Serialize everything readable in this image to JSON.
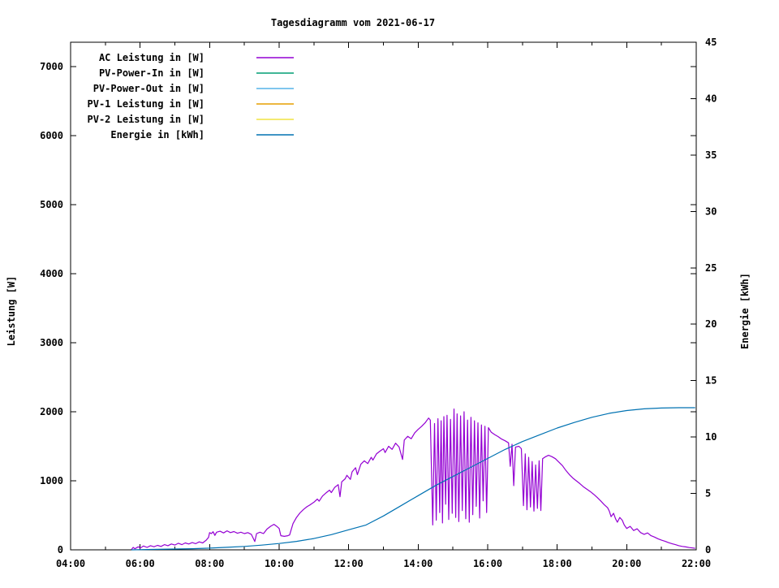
{
  "title": "Tagesdiagramm vom 2021-06-17",
  "chart_data": {
    "type": "line",
    "title": "Tagesdiagramm vom 2021-06-17",
    "xlabel": "",
    "ylabel_left": "Leistung [W]",
    "ylabel_right": "Energie [kWh]",
    "x_range": [
      4,
      22
    ],
    "y_left_range": [
      0,
      7353
    ],
    "y_right_range": [
      0,
      45
    ],
    "grid": "off",
    "legend_position": "top-left-inside",
    "x_ticks_major": [
      {
        "h": 4,
        "label": "04:00"
      },
      {
        "h": 6,
        "label": "06:00"
      },
      {
        "h": 8,
        "label": "08:00"
      },
      {
        "h": 10,
        "label": "10:00"
      },
      {
        "h": 12,
        "label": "12:00"
      },
      {
        "h": 14,
        "label": "14:00"
      },
      {
        "h": 16,
        "label": "16:00"
      },
      {
        "h": 18,
        "label": "18:00"
      },
      {
        "h": 20,
        "label": "20:00"
      },
      {
        "h": 22,
        "label": "22:00"
      }
    ],
    "x_ticks_minor_hours": [
      5,
      7,
      9,
      11,
      13,
      15,
      17,
      19,
      21
    ],
    "y_left_ticks": [
      {
        "v": 0,
        "label": "0"
      },
      {
        "v": 1000,
        "label": "1000"
      },
      {
        "v": 2000,
        "label": "2000"
      },
      {
        "v": 3000,
        "label": "3000"
      },
      {
        "v": 4000,
        "label": "4000"
      },
      {
        "v": 5000,
        "label": "5000"
      },
      {
        "v": 6000,
        "label": "6000"
      },
      {
        "v": 7000,
        "label": "7000"
      }
    ],
    "y_right_ticks": [
      {
        "v": 0,
        "label": "0"
      },
      {
        "v": 5,
        "label": "5"
      },
      {
        "v": 10,
        "label": "10"
      },
      {
        "v": 15,
        "label": "15"
      },
      {
        "v": 20,
        "label": "20"
      },
      {
        "v": 25,
        "label": "25"
      },
      {
        "v": 30,
        "label": "30"
      },
      {
        "v": 35,
        "label": "35"
      },
      {
        "v": 40,
        "label": "40"
      },
      {
        "v": 45,
        "label": "45"
      }
    ],
    "legend": [
      {
        "label": "AC Leistung in [W]",
        "color": "#9400d3"
      },
      {
        "label": "PV-Power-In in [W]",
        "color": "#009e73"
      },
      {
        "label": "PV-Power-Out in [W]",
        "color": "#56b4e9"
      },
      {
        "label": "PV-1 Leistung in [W]",
        "color": "#e69f00"
      },
      {
        "label": "PV-2 Leistung in [W]",
        "color": "#f0e442"
      },
      {
        "label": "Energie in [kWh]",
        "color": "#0072b2"
      }
    ],
    "series": [
      {
        "id": "ac-leistung-line",
        "name": "AC Leistung in [W]",
        "color": "#9400d3",
        "axis": "left",
        "points": [
          [
            5.75,
            5
          ],
          [
            5.8,
            35
          ],
          [
            5.85,
            15
          ],
          [
            5.95,
            45
          ],
          [
            6.0,
            25
          ],
          [
            6.1,
            55
          ],
          [
            6.2,
            35
          ],
          [
            6.3,
            60
          ],
          [
            6.4,
            45
          ],
          [
            6.5,
            65
          ],
          [
            6.6,
            50
          ],
          [
            6.7,
            75
          ],
          [
            6.8,
            60
          ],
          [
            6.9,
            85
          ],
          [
            7.0,
            70
          ],
          [
            7.1,
            95
          ],
          [
            7.2,
            75
          ],
          [
            7.3,
            100
          ],
          [
            7.4,
            85
          ],
          [
            7.5,
            105
          ],
          [
            7.6,
            90
          ],
          [
            7.7,
            115
          ],
          [
            7.8,
            100
          ],
          [
            7.9,
            140
          ],
          [
            7.97,
            180
          ],
          [
            8.0,
            250
          ],
          [
            8.05,
            235
          ],
          [
            8.1,
            262
          ],
          [
            8.15,
            210
          ],
          [
            8.2,
            255
          ],
          [
            8.3,
            270
          ],
          [
            8.4,
            245
          ],
          [
            8.5,
            275
          ],
          [
            8.6,
            250
          ],
          [
            8.7,
            265
          ],
          [
            8.8,
            240
          ],
          [
            8.9,
            255
          ],
          [
            9.0,
            235
          ],
          [
            9.1,
            250
          ],
          [
            9.2,
            225
          ],
          [
            9.3,
            120
          ],
          [
            9.35,
            235
          ],
          [
            9.45,
            255
          ],
          [
            9.55,
            235
          ],
          [
            9.65,
            300
          ],
          [
            9.75,
            340
          ],
          [
            9.85,
            370
          ],
          [
            9.92,
            345
          ],
          [
            10.0,
            310
          ],
          [
            10.05,
            205
          ],
          [
            10.15,
            195
          ],
          [
            10.25,
            205
          ],
          [
            10.3,
            215
          ],
          [
            10.4,
            380
          ],
          [
            10.5,
            470
          ],
          [
            10.6,
            535
          ],
          [
            10.7,
            585
          ],
          [
            10.8,
            625
          ],
          [
            10.9,
            655
          ],
          [
            11.0,
            690
          ],
          [
            11.1,
            735
          ],
          [
            11.15,
            705
          ],
          [
            11.25,
            780
          ],
          [
            11.35,
            825
          ],
          [
            11.45,
            865
          ],
          [
            11.5,
            830
          ],
          [
            11.6,
            905
          ],
          [
            11.7,
            945
          ],
          [
            11.75,
            770
          ],
          [
            11.8,
            985
          ],
          [
            11.9,
            1030
          ],
          [
            11.95,
            1080
          ],
          [
            12.05,
            1020
          ],
          [
            12.1,
            1130
          ],
          [
            12.2,
            1190
          ],
          [
            12.25,
            1090
          ],
          [
            12.35,
            1240
          ],
          [
            12.45,
            1290
          ],
          [
            12.55,
            1250
          ],
          [
            12.65,
            1340
          ],
          [
            12.7,
            1300
          ],
          [
            12.8,
            1390
          ],
          [
            12.9,
            1430
          ],
          [
            13.0,
            1465
          ],
          [
            13.05,
            1410
          ],
          [
            13.15,
            1500
          ],
          [
            13.25,
            1455
          ],
          [
            13.35,
            1545
          ],
          [
            13.45,
            1490
          ],
          [
            13.55,
            1310
          ],
          [
            13.6,
            1590
          ],
          [
            13.7,
            1645
          ],
          [
            13.8,
            1610
          ],
          [
            13.9,
            1695
          ],
          [
            14.0,
            1745
          ],
          [
            14.1,
            1790
          ],
          [
            14.2,
            1840
          ],
          [
            14.3,
            1910
          ],
          [
            14.35,
            1880
          ],
          [
            14.42,
            360
          ],
          [
            14.47,
            1830
          ],
          [
            14.52,
            430
          ],
          [
            14.57,
            1900
          ],
          [
            14.62,
            540
          ],
          [
            14.66,
            1870
          ],
          [
            14.7,
            390
          ],
          [
            14.74,
            1930
          ],
          [
            14.79,
            660
          ],
          [
            14.83,
            1950
          ],
          [
            14.88,
            440
          ],
          [
            14.93,
            1890
          ],
          [
            14.98,
            530
          ],
          [
            15.03,
            2040
          ],
          [
            15.08,
            470
          ],
          [
            15.12,
            1970
          ],
          [
            15.17,
            410
          ],
          [
            15.22,
            1940
          ],
          [
            15.27,
            570
          ],
          [
            15.32,
            2000
          ],
          [
            15.37,
            450
          ],
          [
            15.42,
            1880
          ],
          [
            15.47,
            400
          ],
          [
            15.52,
            1920
          ],
          [
            15.57,
            510
          ],
          [
            15.62,
            1870
          ],
          [
            15.67,
            630
          ],
          [
            15.72,
            1840
          ],
          [
            15.77,
            460
          ],
          [
            15.82,
            1810
          ],
          [
            15.87,
            710
          ],
          [
            15.92,
            1790
          ],
          [
            15.97,
            540
          ],
          [
            16.02,
            1770
          ],
          [
            16.1,
            1705
          ],
          [
            16.2,
            1670
          ],
          [
            16.3,
            1640
          ],
          [
            16.4,
            1605
          ],
          [
            16.5,
            1580
          ],
          [
            16.6,
            1550
          ],
          [
            16.65,
            1210
          ],
          [
            16.7,
            1530
          ],
          [
            16.75,
            930
          ],
          [
            16.8,
            1490
          ],
          [
            16.9,
            1500
          ],
          [
            16.97,
            1465
          ],
          [
            17.03,
            640
          ],
          [
            17.08,
            1390
          ],
          [
            17.13,
            580
          ],
          [
            17.18,
            1340
          ],
          [
            17.23,
            620
          ],
          [
            17.28,
            1280
          ],
          [
            17.33,
            560
          ],
          [
            17.38,
            1230
          ],
          [
            17.43,
            600
          ],
          [
            17.48,
            1290
          ],
          [
            17.53,
            570
          ],
          [
            17.58,
            1320
          ],
          [
            17.65,
            1345
          ],
          [
            17.75,
            1370
          ],
          [
            17.85,
            1350
          ],
          [
            17.95,
            1320
          ],
          [
            18.05,
            1270
          ],
          [
            18.15,
            1220
          ],
          [
            18.25,
            1150
          ],
          [
            18.35,
            1090
          ],
          [
            18.45,
            1040
          ],
          [
            18.55,
            1000
          ],
          [
            18.65,
            960
          ],
          [
            18.75,
            915
          ],
          [
            18.85,
            880
          ],
          [
            18.95,
            845
          ],
          [
            19.05,
            805
          ],
          [
            19.15,
            760
          ],
          [
            19.25,
            710
          ],
          [
            19.35,
            655
          ],
          [
            19.45,
            610
          ],
          [
            19.5,
            560
          ],
          [
            19.55,
            480
          ],
          [
            19.62,
            530
          ],
          [
            19.68,
            450
          ],
          [
            19.73,
            400
          ],
          [
            19.8,
            470
          ],
          [
            19.87,
            430
          ],
          [
            19.93,
            360
          ],
          [
            20.0,
            310
          ],
          [
            20.1,
            340
          ],
          [
            20.2,
            280
          ],
          [
            20.3,
            305
          ],
          [
            20.4,
            250
          ],
          [
            20.5,
            225
          ],
          [
            20.6,
            245
          ],
          [
            20.7,
            205
          ],
          [
            20.8,
            185
          ],
          [
            20.9,
            160
          ],
          [
            21.0,
            140
          ],
          [
            21.1,
            125
          ],
          [
            21.2,
            105
          ],
          [
            21.3,
            90
          ],
          [
            21.4,
            75
          ],
          [
            21.5,
            60
          ],
          [
            21.6,
            50
          ],
          [
            21.7,
            42
          ],
          [
            21.8,
            33
          ],
          [
            21.9,
            27
          ],
          [
            21.97,
            22
          ]
        ]
      },
      {
        "id": "pv-power-in-line",
        "name": "PV-Power-In in [W]",
        "color": "#009e73",
        "axis": "left",
        "points": []
      },
      {
        "id": "pv-power-out-line",
        "name": "PV-Power-Out in [W]",
        "color": "#56b4e9",
        "axis": "left",
        "points": []
      },
      {
        "id": "pv1-leistung-line",
        "name": "PV-1 Leistung in [W]",
        "color": "#e69f00",
        "axis": "left",
        "points": []
      },
      {
        "id": "pv2-leistung-line",
        "name": "PV-2 Leistung in [W]",
        "color": "#f0e442",
        "axis": "left",
        "points": []
      },
      {
        "id": "energie-line",
        "name": "Energie in [kWh]",
        "color": "#0072b2",
        "axis": "right",
        "points": [
          [
            5.75,
            0
          ],
          [
            6.5,
            0.04
          ],
          [
            7.0,
            0.07
          ],
          [
            7.5,
            0.1
          ],
          [
            8.0,
            0.15
          ],
          [
            8.5,
            0.22
          ],
          [
            9.0,
            0.3
          ],
          [
            9.5,
            0.42
          ],
          [
            10.0,
            0.56
          ],
          [
            10.5,
            0.75
          ],
          [
            11.0,
            1.0
          ],
          [
            11.5,
            1.35
          ],
          [
            12.0,
            1.78
          ],
          [
            12.5,
            2.2
          ],
          [
            13.0,
            3.0
          ],
          [
            13.5,
            3.9
          ],
          [
            14.0,
            4.8
          ],
          [
            14.5,
            5.7
          ],
          [
            15.0,
            6.5
          ],
          [
            15.5,
            7.3
          ],
          [
            16.0,
            8.1
          ],
          [
            16.5,
            8.9
          ],
          [
            17.0,
            9.6
          ],
          [
            17.5,
            10.2
          ],
          [
            18.0,
            10.8
          ],
          [
            18.5,
            11.3
          ],
          [
            19.0,
            11.75
          ],
          [
            19.5,
            12.1
          ],
          [
            20.0,
            12.35
          ],
          [
            20.5,
            12.5
          ],
          [
            21.0,
            12.57
          ],
          [
            21.5,
            12.6
          ],
          [
            21.97,
            12.6
          ]
        ]
      }
    ]
  }
}
